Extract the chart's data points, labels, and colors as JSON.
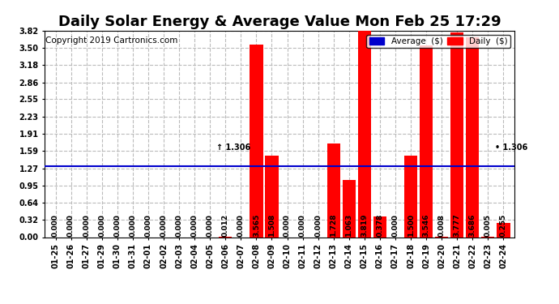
{
  "title": "Daily Solar Energy & Average Value Mon Feb 25 17:29",
  "copyright": "Copyright 2019 Cartronics.com",
  "categories": [
    "01-25",
    "01-26",
    "01-27",
    "01-29",
    "01-30",
    "01-31",
    "02-01",
    "02-02",
    "02-03",
    "02-04",
    "02-05",
    "02-06",
    "02-07",
    "02-08",
    "02-09",
    "02-10",
    "02-11",
    "02-12",
    "02-13",
    "02-14",
    "02-15",
    "02-16",
    "02-17",
    "02-18",
    "02-19",
    "02-20",
    "02-21",
    "02-22",
    "02-23",
    "02-24"
  ],
  "values": [
    0.0,
    0.0,
    0.0,
    0.0,
    0.0,
    0.0,
    0.0,
    0.0,
    0.0,
    0.0,
    0.0,
    0.012,
    0.0,
    3.565,
    1.508,
    0.0,
    0.0,
    0.0,
    1.728,
    1.063,
    3.819,
    0.378,
    0.0,
    1.5,
    3.546,
    0.008,
    3.777,
    3.686,
    0.005,
    0.255
  ],
  "average": 1.306,
  "ylim": [
    0.0,
    3.82
  ],
  "yticks": [
    0.0,
    0.32,
    0.64,
    0.95,
    1.27,
    1.59,
    1.91,
    2.23,
    2.55,
    2.86,
    3.18,
    3.5,
    3.82
  ],
  "bar_color": "#FF0000",
  "avg_line_color": "#0000CC",
  "grid_color": "#BBBBBB",
  "title_fontsize": 13,
  "copyright_fontsize": 7.5,
  "tick_fontsize": 7,
  "value_fontsize": 6.5,
  "legend_avg_color": "#0000CC",
  "legend_daily_color": "#FF0000",
  "background_color": "#FFFFFF",
  "avg_annotation": "1.306"
}
